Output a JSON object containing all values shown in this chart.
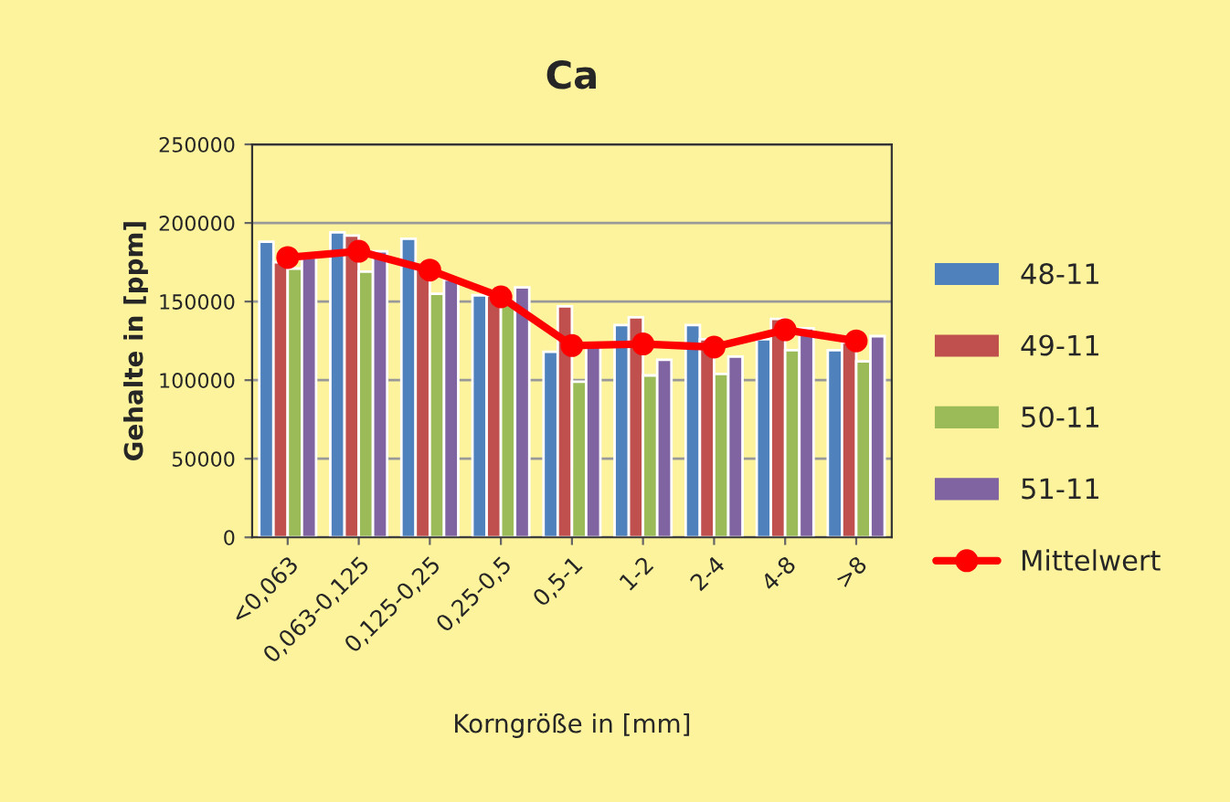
{
  "chart_data": {
    "type": "bar",
    "title": "Ca",
    "xlabel": "Korngröße in [mm]",
    "ylabel": "Gehalte in [ppm]",
    "categories": [
      "<0,063",
      "0,063-0,125",
      "0,125-0,25",
      "0,25-0,5",
      "0,5-1",
      "1-2",
      "2-4",
      "4-8",
      ">8"
    ],
    "series": [
      {
        "name": "48-11",
        "color": "#4f81bd",
        "values": [
          188000,
          194000,
          190000,
          154000,
          118000,
          135000,
          135000,
          126000,
          119000
        ]
      },
      {
        "name": "49-11",
        "color": "#c0504d",
        "values": [
          175000,
          192000,
          172000,
          154000,
          147000,
          140000,
          126000,
          139000,
          124000
        ]
      },
      {
        "name": "50-11",
        "color": "#9bbb59",
        "values": [
          171000,
          169000,
          155000,
          148000,
          99000,
          103000,
          104000,
          119000,
          112000
        ]
      },
      {
        "name": "51-11",
        "color": "#8064a2",
        "values": [
          178000,
          182000,
          164000,
          159000,
          122000,
          113000,
          115000,
          133000,
          128000
        ]
      },
      {
        "name": "Mittelwert",
        "type": "line",
        "color": "#ff0000",
        "marker": "circle",
        "values": [
          178000,
          182000,
          170000,
          153000,
          122000,
          123000,
          121000,
          132000,
          125000
        ]
      }
    ],
    "ylim": [
      0,
      250000
    ],
    "yticks": [
      0,
      50000,
      100000,
      150000,
      200000,
      250000
    ],
    "grid": "y",
    "legend": "right"
  }
}
